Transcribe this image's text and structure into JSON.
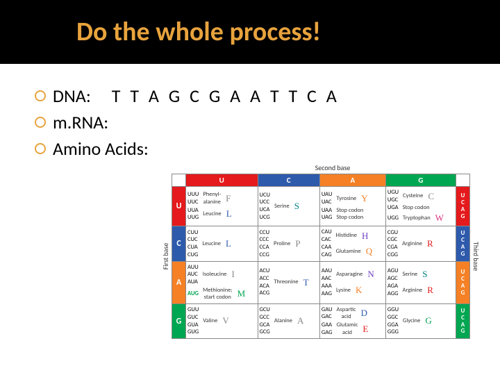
{
  "title": "Do the whole process!",
  "bullets": {
    "dna_label": "DNA:",
    "dna_seq": "T T A G C G A A T T C A",
    "mrna_label": "m.RNA:",
    "aa_label": "Amino Acids:"
  },
  "table_labels": {
    "second": "Second base",
    "first": "First base",
    "third": "Third base"
  },
  "bases": [
    "U",
    "C",
    "A",
    "G"
  ],
  "base_colors": {
    "U": "#e41a1c",
    "C": "#2e5aac",
    "A": "#f58025",
    "G": "#00a651"
  },
  "letter_colors": {
    "F": "#888",
    "L": "#2e5aac",
    "S": "#008080",
    "Y": "#f58025",
    "C": "#888",
    "W": "#d63384",
    "P": "#888",
    "H": "#6f42c1",
    "Q": "#f58025",
    "R": "#e41a1c",
    "I": "#888",
    "M": "#00a651",
    "T": "#2e5aac",
    "N": "#6f42c1",
    "K": "#f58025",
    "V": "#888",
    "A": "#888",
    "D": "#2e5aac",
    "E": "#e41a1c",
    "G": "#00a651"
  },
  "cells": {
    "U": {
      "U": [
        {
          "codons": [
            "UUU",
            "UUC"
          ],
          "aa": "Phenyl-\nalanine",
          "l": "F"
        },
        {
          "codons": [
            "UUA",
            "UUG"
          ],
          "aa": "Leucine",
          "l": "L"
        }
      ],
      "C": [
        {
          "codons": [
            "UCU",
            "UCC",
            "UCA",
            "UCG"
          ],
          "aa": "Serine",
          "l": "S"
        }
      ],
      "A": [
        {
          "codons": [
            "UAU",
            "UAC"
          ],
          "aa": "Tyrosine",
          "l": "Y"
        },
        {
          "codons": [
            "UAA",
            "UAG"
          ],
          "aa": "Stop codon\nStop codon"
        }
      ],
      "G": [
        {
          "codons": [
            "UGU",
            "UGC"
          ],
          "aa": "Cysteine",
          "l": "C"
        },
        {
          "codons": [
            "UGA"
          ],
          "aa": "Stop codon"
        },
        {
          "codons": [
            "UGG"
          ],
          "aa": "Tryptophan",
          "l": "W"
        }
      ]
    },
    "C": {
      "U": [
        {
          "codons": [
            "CUU",
            "CUC",
            "CUA",
            "CUG"
          ],
          "aa": "Leucine",
          "l": "L"
        }
      ],
      "C": [
        {
          "codons": [
            "CCU",
            "CCC",
            "CCA",
            "CCG"
          ],
          "aa": "Proline",
          "l": "P"
        }
      ],
      "A": [
        {
          "codons": [
            "CAU",
            "CAC"
          ],
          "aa": "Histidine",
          "l": "H"
        },
        {
          "codons": [
            "CAA",
            "CAG"
          ],
          "aa": "Glutamine",
          "l": "Q"
        }
      ],
      "G": [
        {
          "codons": [
            "CGU",
            "CGC",
            "CGA",
            "CGG"
          ],
          "aa": "Arginine",
          "l": "R"
        }
      ]
    },
    "A": {
      "U": [
        {
          "codons": [
            "AUU",
            "AUC",
            "AUA"
          ],
          "aa": "Isoleucine",
          "l": "I"
        },
        {
          "codons": [
            "AUG"
          ],
          "aa": "Methionine;\nstart codon",
          "l": "M",
          "hl": true
        }
      ],
      "C": [
        {
          "codons": [
            "ACU",
            "ACC",
            "ACA",
            "ACG"
          ],
          "aa": "Threonine",
          "l": "T"
        }
      ],
      "A": [
        {
          "codons": [
            "AAU",
            "AAC"
          ],
          "aa": "Asparagine",
          "l": "N"
        },
        {
          "codons": [
            "AAA",
            "AAG"
          ],
          "aa": "Lysine",
          "l": "K"
        }
      ],
      "G": [
        {
          "codons": [
            "AGU",
            "AGC"
          ],
          "aa": "Serine",
          "l": "S"
        },
        {
          "codons": [
            "AGA",
            "AGG"
          ],
          "aa": "Arginine",
          "l": "R"
        }
      ]
    },
    "G": {
      "U": [
        {
          "codons": [
            "GUU",
            "GUC",
            "GUA",
            "GUG"
          ],
          "aa": "Valine",
          "l": "V"
        }
      ],
      "C": [
        {
          "codons": [
            "GCU",
            "GCC",
            "GCA",
            "GCG"
          ],
          "aa": "Alanine",
          "l": "A"
        }
      ],
      "A": [
        {
          "codons": [
            "GAU",
            "GAC"
          ],
          "aa": "Aspartic\nacid",
          "l": "D"
        },
        {
          "codons": [
            "GAA",
            "GAG"
          ],
          "aa": "Glutamic\nacid",
          "l": "E"
        }
      ],
      "G": [
        {
          "codons": [
            "GGU",
            "GGC",
            "GGA",
            "GGG"
          ],
          "aa": "Glycine",
          "l": "G"
        }
      ]
    }
  },
  "colors": {
    "title_bg": "#000000",
    "title_fg": "#e8a33d",
    "bullet_ring": "#e8a33d",
    "text": "#000000"
  },
  "fonts": {
    "title_size": 38,
    "bullet_size": 26,
    "table_size": 9
  }
}
